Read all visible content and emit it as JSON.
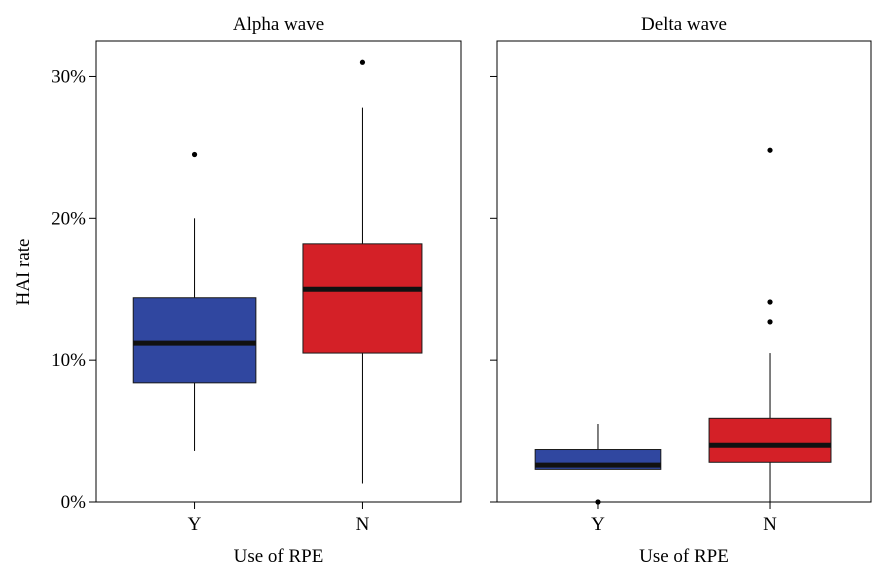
{
  "chart_data": {
    "type": "boxplot",
    "ylabel": "HAI rate",
    "xlabel": "Use of RPE",
    "y_ticks": [
      "0%",
      "10%",
      "20%",
      "30%"
    ],
    "y_tick_values": [
      0,
      10,
      20,
      30
    ],
    "ylim": [
      0,
      32.5
    ],
    "categories": [
      "Y",
      "N"
    ],
    "panels": [
      {
        "title": "Alpha wave",
        "boxes": [
          {
            "category": "Y",
            "color": "#3047A0",
            "whisker_low": 3.6,
            "q1": 8.4,
            "median": 11.2,
            "q3": 14.4,
            "whisker_high": 20.0,
            "outliers": [
              24.5
            ]
          },
          {
            "category": "N",
            "color": "#D42027",
            "whisker_low": 1.3,
            "q1": 10.5,
            "median": 15.0,
            "q3": 18.2,
            "whisker_high": 27.8,
            "outliers": [
              31.0
            ]
          }
        ]
      },
      {
        "title": "Delta wave",
        "boxes": [
          {
            "category": "Y",
            "color": "#3047A0",
            "whisker_low": 2.3,
            "q1": 2.3,
            "median": 2.6,
            "q3": 3.7,
            "whisker_high": 5.5,
            "outliers": [
              0.0
            ]
          },
          {
            "category": "N",
            "color": "#D42027",
            "whisker_low": 0.0,
            "q1": 2.8,
            "median": 4.0,
            "q3": 5.9,
            "whisker_high": 10.5,
            "outliers": [
              12.7,
              14.1,
              24.8
            ]
          }
        ]
      }
    ]
  }
}
